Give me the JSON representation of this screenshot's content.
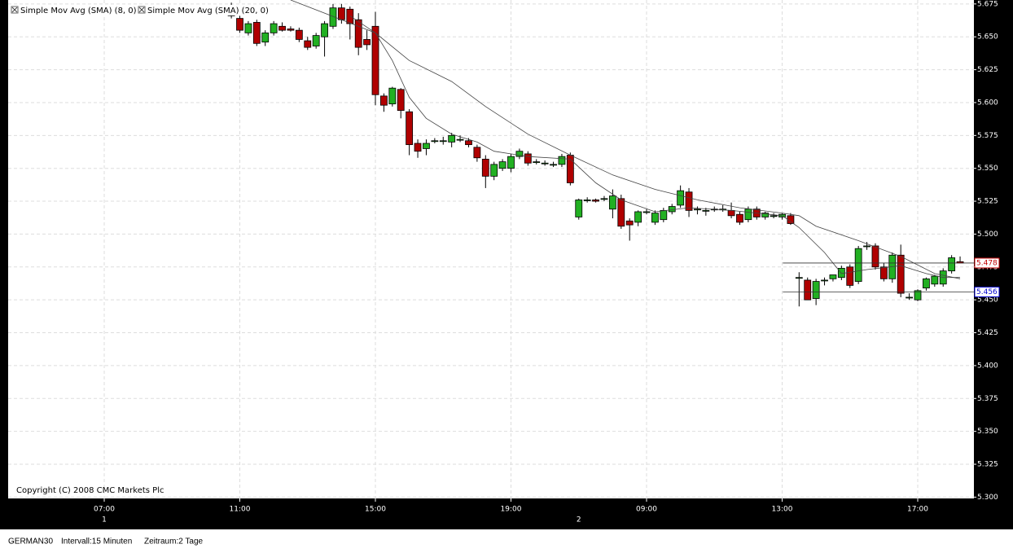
{
  "chart_data": {
    "type": "candlestick",
    "legend": [
      "Simple Mov Avg (SMA) (8, 0)",
      "Simple Mov Avg (SMA) (20, 0)"
    ],
    "copyright": "Copyright (C) 2008 CMC Markets Plc",
    "status": [
      "GERMAN30",
      "Intervall:15 Minuten",
      "Zeitraum:2 Tage"
    ],
    "up_color": "#22b022",
    "down_color": "#b00000",
    "grid": true,
    "xlim": [
      -11.34,
      102.63
    ],
    "ylim": [
      5.299,
      5.678
    ],
    "xticks": [
      {
        "value": 0,
        "label": "07:00"
      },
      {
        "value": 16,
        "label": "11:00"
      },
      {
        "value": 32,
        "label": "15:00"
      },
      {
        "value": 48,
        "label": "19:00"
      },
      {
        "value": 64,
        "label": "09:00"
      },
      {
        "value": 80,
        "label": "13:00"
      },
      {
        "value": 96,
        "label": "17:00"
      }
    ],
    "day_ticks": [
      {
        "value": 0,
        "label": "1"
      },
      {
        "value": 56,
        "label": "2"
      }
    ],
    "yticks": [
      5.675,
      {
        "value": 5.65,
        "label": "5.650"
      },
      5.625,
      {
        "value": 5.6,
        "label": "5.600"
      },
      5.575,
      {
        "value": 5.55,
        "label": "5.550"
      },
      5.525,
      {
        "value": 5.5,
        "label": "5.500"
      },
      5.475,
      {
        "value": 5.45,
        "label": "5.450"
      },
      5.425,
      {
        "value": 5.4,
        "label": "5.400"
      },
      5.375,
      {
        "value": 5.35,
        "label": "5.350"
      },
      5.325,
      {
        "value": 5.3,
        "label": "5.300"
      }
    ],
    "x": [
      15,
      16,
      17,
      18,
      19,
      20,
      21,
      22,
      23,
      24,
      25,
      26,
      27,
      28,
      29,
      30,
      31,
      32,
      33,
      34,
      35,
      36,
      37,
      38,
      39,
      40,
      41,
      42,
      43,
      44,
      45,
      46,
      47,
      48,
      49,
      50,
      51,
      52,
      53,
      54,
      55,
      56,
      57,
      58,
      59,
      60,
      61,
      62,
      63,
      64,
      65,
      66,
      67,
      68,
      69,
      70,
      71,
      72,
      73,
      74,
      75,
      76,
      77,
      78,
      79,
      80,
      81,
      82,
      83,
      84,
      85,
      86,
      87,
      88,
      89,
      90,
      91,
      92,
      93,
      94,
      95,
      96,
      97,
      98,
      99,
      100,
      101
    ],
    "open": [
      5.673,
      5.664,
      5.653,
      5.661,
      5.646,
      5.653,
      5.658,
      5.656,
      5.655,
      5.647,
      5.643,
      5.65,
      5.658,
      5.672,
      5.671,
      5.663,
      5.648,
      5.658,
      5.605,
      5.599,
      5.61,
      5.593,
      5.569,
      5.565,
      5.571,
      5.571,
      5.57,
      5.572,
      5.571,
      5.566,
      5.557,
      5.544,
      5.55,
      5.55,
      5.559,
      5.561,
      5.555,
      5.554,
      5.553,
      5.553,
      5.56,
      5.513,
      5.526,
      5.526,
      5.527,
      5.519,
      5.527,
      5.51,
      5.509,
      5.517,
      5.509,
      5.511,
      5.517,
      5.522,
      5.532,
      5.519,
      5.518,
      5.519,
      5.519,
      5.518,
      5.515,
      5.511,
      5.519,
      5.513,
      5.514,
      5.513,
      5.514,
      5.467,
      5.465,
      5.451,
      5.465,
      5.466,
      5.467,
      5.475,
      5.464,
      5.491,
      5.491,
      5.475,
      5.466,
      5.484,
      5.452,
      5.45,
      5.459,
      5.462,
      5.462,
      5.472,
      5.479
    ],
    "high": [
      5.676,
      5.666,
      5.662,
      5.663,
      5.655,
      5.662,
      5.661,
      5.658,
      5.657,
      5.65,
      5.653,
      5.662,
      5.675,
      5.675,
      5.673,
      5.668,
      5.655,
      5.669,
      5.607,
      5.612,
      5.611,
      5.595,
      5.572,
      5.572,
      5.573,
      5.574,
      5.577,
      5.575,
      5.573,
      5.568,
      5.56,
      5.555,
      5.557,
      5.561,
      5.565,
      5.563,
      5.557,
      5.556,
      5.555,
      5.561,
      5.562,
      5.527,
      5.528,
      5.527,
      5.529,
      5.534,
      5.53,
      5.512,
      5.518,
      5.519,
      5.518,
      5.52,
      5.523,
      5.537,
      5.535,
      5.521,
      5.52,
      5.521,
      5.522,
      5.524,
      5.517,
      5.521,
      5.521,
      5.517,
      5.516,
      5.516,
      5.516,
      5.471,
      5.467,
      5.466,
      5.467,
      5.469,
      5.476,
      5.477,
      5.491,
      5.494,
      5.493,
      5.478,
      5.486,
      5.492,
      5.455,
      5.458,
      5.467,
      5.469,
      5.474,
      5.484,
      5.483
    ],
    "low": [
      5.664,
      5.653,
      5.651,
      5.643,
      5.643,
      5.651,
      5.654,
      5.654,
      5.646,
      5.64,
      5.641,
      5.635,
      5.656,
      5.66,
      5.648,
      5.636,
      5.64,
      5.598,
      5.593,
      5.597,
      5.588,
      5.56,
      5.558,
      5.56,
      5.569,
      5.568,
      5.566,
      5.57,
      5.566,
      5.555,
      5.535,
      5.541,
      5.548,
      5.547,
      5.557,
      5.552,
      5.553,
      5.552,
      5.551,
      5.551,
      5.537,
      5.511,
      5.524,
      5.524,
      5.525,
      5.512,
      5.504,
      5.495,
      5.506,
      5.515,
      5.507,
      5.509,
      5.515,
      5.52,
      5.513,
      5.515,
      5.514,
      5.517,
      5.517,
      5.512,
      5.507,
      5.509,
      5.511,
      5.511,
      5.512,
      5.511,
      5.507,
      5.445,
      5.45,
      5.446,
      5.461,
      5.464,
      5.465,
      5.459,
      5.462,
      5.488,
      5.473,
      5.464,
      5.463,
      5.452,
      5.45,
      5.449,
      5.457,
      5.46,
      5.46,
      5.47,
      5.478
    ],
    "close": [
      5.666,
      5.655,
      5.66,
      5.645,
      5.653,
      5.66,
      5.655,
      5.655,
      5.648,
      5.642,
      5.651,
      5.66,
      5.672,
      5.663,
      5.66,
      5.642,
      5.644,
      5.606,
      5.598,
      5.611,
      5.594,
      5.568,
      5.563,
      5.569,
      5.571,
      5.571,
      5.575,
      5.572,
      5.568,
      5.558,
      5.544,
      5.553,
      5.555,
      5.559,
      5.563,
      5.554,
      5.555,
      5.554,
      5.553,
      5.559,
      5.539,
      5.526,
      5.526,
      5.525,
      5.527,
      5.529,
      5.506,
      5.507,
      5.517,
      5.517,
      5.516,
      5.518,
      5.521,
      5.533,
      5.518,
      5.519,
      5.518,
      5.519,
      5.519,
      5.514,
      5.509,
      5.519,
      5.513,
      5.516,
      5.514,
      5.515,
      5.508,
      5.467,
      5.45,
      5.464,
      5.465,
      5.469,
      5.474,
      5.461,
      5.489,
      5.491,
      5.475,
      5.466,
      5.484,
      5.455,
      5.452,
      5.457,
      5.466,
      5.468,
      5.472,
      5.482,
      5.478
    ],
    "series": [
      {
        "name": "Simple Mov Avg (SMA) (8, 0)",
        "color": "#444444",
        "x": [
          29,
          32,
          34,
          36,
          38,
          41,
          44,
          46,
          50,
          55,
          58,
          61,
          65,
          69,
          74,
          80,
          82,
          85,
          87,
          90,
          94,
          97,
          99,
          101
        ],
        "values": [
          5.666,
          5.653,
          5.632,
          5.604,
          5.588,
          5.576,
          5.57,
          5.563,
          5.559,
          5.557,
          5.539,
          5.526,
          5.517,
          5.52,
          5.518,
          5.514,
          5.505,
          5.486,
          5.47,
          5.473,
          5.476,
          5.47,
          5.467,
          5.467
        ]
      },
      {
        "name": "Simple Mov Avg (SMA) (20, 0)",
        "color": "#444444",
        "x": [
          22,
          32,
          36,
          41,
          45,
          50,
          55,
          60,
          65,
          70,
          75,
          80,
          82,
          84,
          89,
          94,
          98,
          101
        ],
        "values": [
          5.678,
          5.653,
          5.632,
          5.616,
          5.597,
          5.576,
          5.56,
          5.545,
          5.534,
          5.526,
          5.52,
          5.516,
          5.514,
          5.506,
          5.495,
          5.483,
          5.47,
          5.466
        ]
      }
    ],
    "price_markers": [
      {
        "value": 5.478,
        "color": "#c00000"
      },
      {
        "value": 5.456,
        "color": "#0000cc"
      }
    ]
  }
}
